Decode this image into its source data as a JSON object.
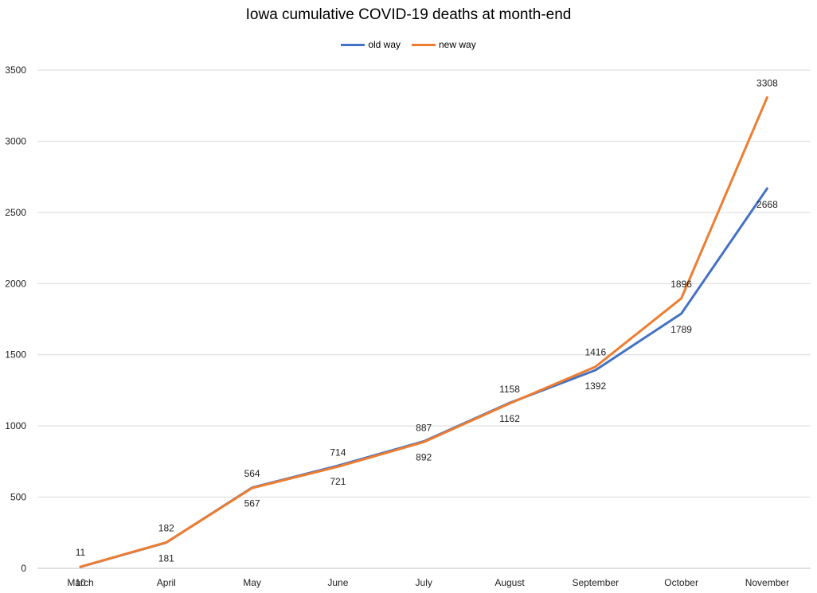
{
  "chart_data": {
    "type": "line",
    "title": "Iowa cumulative COVID-19 deaths at month-end",
    "categories": [
      "March",
      "April",
      "May",
      "June",
      "July",
      "August",
      "September",
      "October",
      "November"
    ],
    "series": [
      {
        "name": "old way",
        "color": "#4472C4",
        "values": [
          10,
          181,
          567,
          721,
          892,
          1162,
          1392,
          1789,
          2668
        ],
        "label_position": "below"
      },
      {
        "name": "new way",
        "color": "#ED7D31",
        "values": [
          11,
          182,
          564,
          714,
          887,
          1158,
          1416,
          1896,
          3308
        ],
        "label_position": "above"
      }
    ],
    "ylim": [
      0,
      3500
    ],
    "yticks": [
      0,
      500,
      1000,
      1500,
      2000,
      2500,
      3000,
      3500
    ],
    "grid": true,
    "legend_position": "top"
  }
}
